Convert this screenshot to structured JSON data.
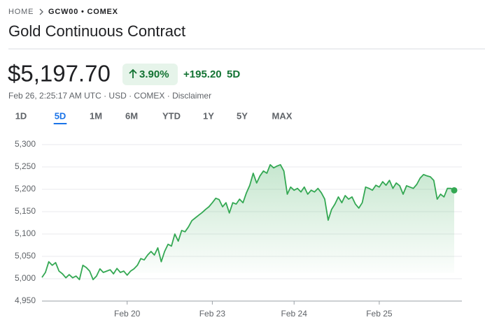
{
  "header": {
    "breadcrumb": [
      "HOME",
      "GCW00 • COMEX"
    ],
    "title": "Gold Continuous Contract"
  },
  "quote": {
    "price": "$5,197.70",
    "change_percent": "3.90%",
    "change": "+195.20",
    "change_period": "5D",
    "info": "Feb 26, 2:25:17 AM UTC · USD · COMEX · Disclaimer"
  },
  "ranges": [
    {
      "label": "1D",
      "selected": false
    },
    {
      "label": "5D",
      "selected": true
    },
    {
      "label": "1M",
      "selected": false
    },
    {
      "label": "6M",
      "selected": false
    },
    {
      "label": "YTD",
      "selected": false
    },
    {
      "label": "1Y",
      "selected": false
    },
    {
      "label": "5Y",
      "selected": false
    },
    {
      "label": "MAX",
      "selected": false
    }
  ],
  "chart_data": {
    "type": "line",
    "color": "#34a853",
    "grid": true,
    "ylim": [
      4950,
      5300
    ],
    "yticks": [
      {
        "value": 4950,
        "label": "4,950"
      },
      {
        "value": 5000,
        "label": "5,000"
      },
      {
        "value": 5050,
        "label": "5,050"
      },
      {
        "value": 5100,
        "label": "5,100"
      },
      {
        "value": 5150,
        "label": "5,150"
      },
      {
        "value": 5200,
        "label": "5,200"
      },
      {
        "value": 5250,
        "label": "5,250"
      },
      {
        "value": 5300,
        "label": "5,300"
      }
    ],
    "categories": [
      null,
      null,
      null,
      null,
      null,
      null,
      null,
      null,
      null,
      null,
      null,
      null,
      null,
      null,
      null,
      null,
      null,
      null,
      null,
      null,
      null,
      null,
      null,
      null,
      null,
      "Feb 20",
      null,
      null,
      null,
      null,
      null,
      null,
      null,
      null,
      null,
      null,
      null,
      null,
      null,
      null,
      null,
      null,
      null,
      null,
      null,
      null,
      null,
      null,
      null,
      null,
      "Feb 23",
      null,
      null,
      null,
      null,
      null,
      null,
      null,
      null,
      null,
      null,
      null,
      null,
      null,
      null,
      null,
      null,
      null,
      null,
      null,
      null,
      null,
      null,
      null,
      "Feb 24",
      null,
      null,
      null,
      null,
      null,
      null,
      null,
      null,
      null,
      null,
      null,
      null,
      null,
      null,
      null,
      null,
      null,
      null,
      null,
      null,
      null,
      null,
      null,
      null,
      "Feb 25",
      null,
      null,
      null,
      null,
      null,
      null,
      null,
      null,
      null,
      null,
      null,
      null,
      null,
      null,
      null,
      null,
      null,
      null,
      null,
      null,
      null,
      null
    ],
    "values": [
      5003,
      5014,
      5038,
      5030,
      5036,
      5017,
      5011,
      5002,
      5009,
      5002,
      5006,
      4998,
      5030,
      5025,
      5017,
      4998,
      5006,
      5022,
      5014,
      5017,
      5020,
      5011,
      5023,
      5014,
      5017,
      5008,
      5017,
      5022,
      5030,
      5045,
      5042,
      5053,
      5061,
      5053,
      5069,
      5038,
      5061,
      5077,
      5073,
      5100,
      5084,
      5108,
      5105,
      5116,
      5130,
      5136,
      5142,
      5148,
      5155,
      5161,
      5170,
      5180,
      5177,
      5161,
      5170,
      5147,
      5170,
      5167,
      5178,
      5170,
      5192,
      5209,
      5236,
      5214,
      5230,
      5241,
      5236,
      5255,
      5248,
      5252,
      5255,
      5241,
      5189,
      5205,
      5198,
      5202,
      5194,
      5205,
      5189,
      5198,
      5194,
      5202,
      5192,
      5178,
      5131,
      5155,
      5167,
      5183,
      5170,
      5186,
      5178,
      5183,
      5167,
      5158,
      5170,
      5205,
      5202,
      5198,
      5209,
      5205,
      5217,
      5209,
      5220,
      5202,
      5214,
      5208,
      5189,
      5208,
      5205,
      5202,
      5211,
      5225,
      5233,
      5230,
      5228,
      5220,
      5178,
      5189,
      5183,
      5202,
      5202,
      5197.7
    ]
  }
}
